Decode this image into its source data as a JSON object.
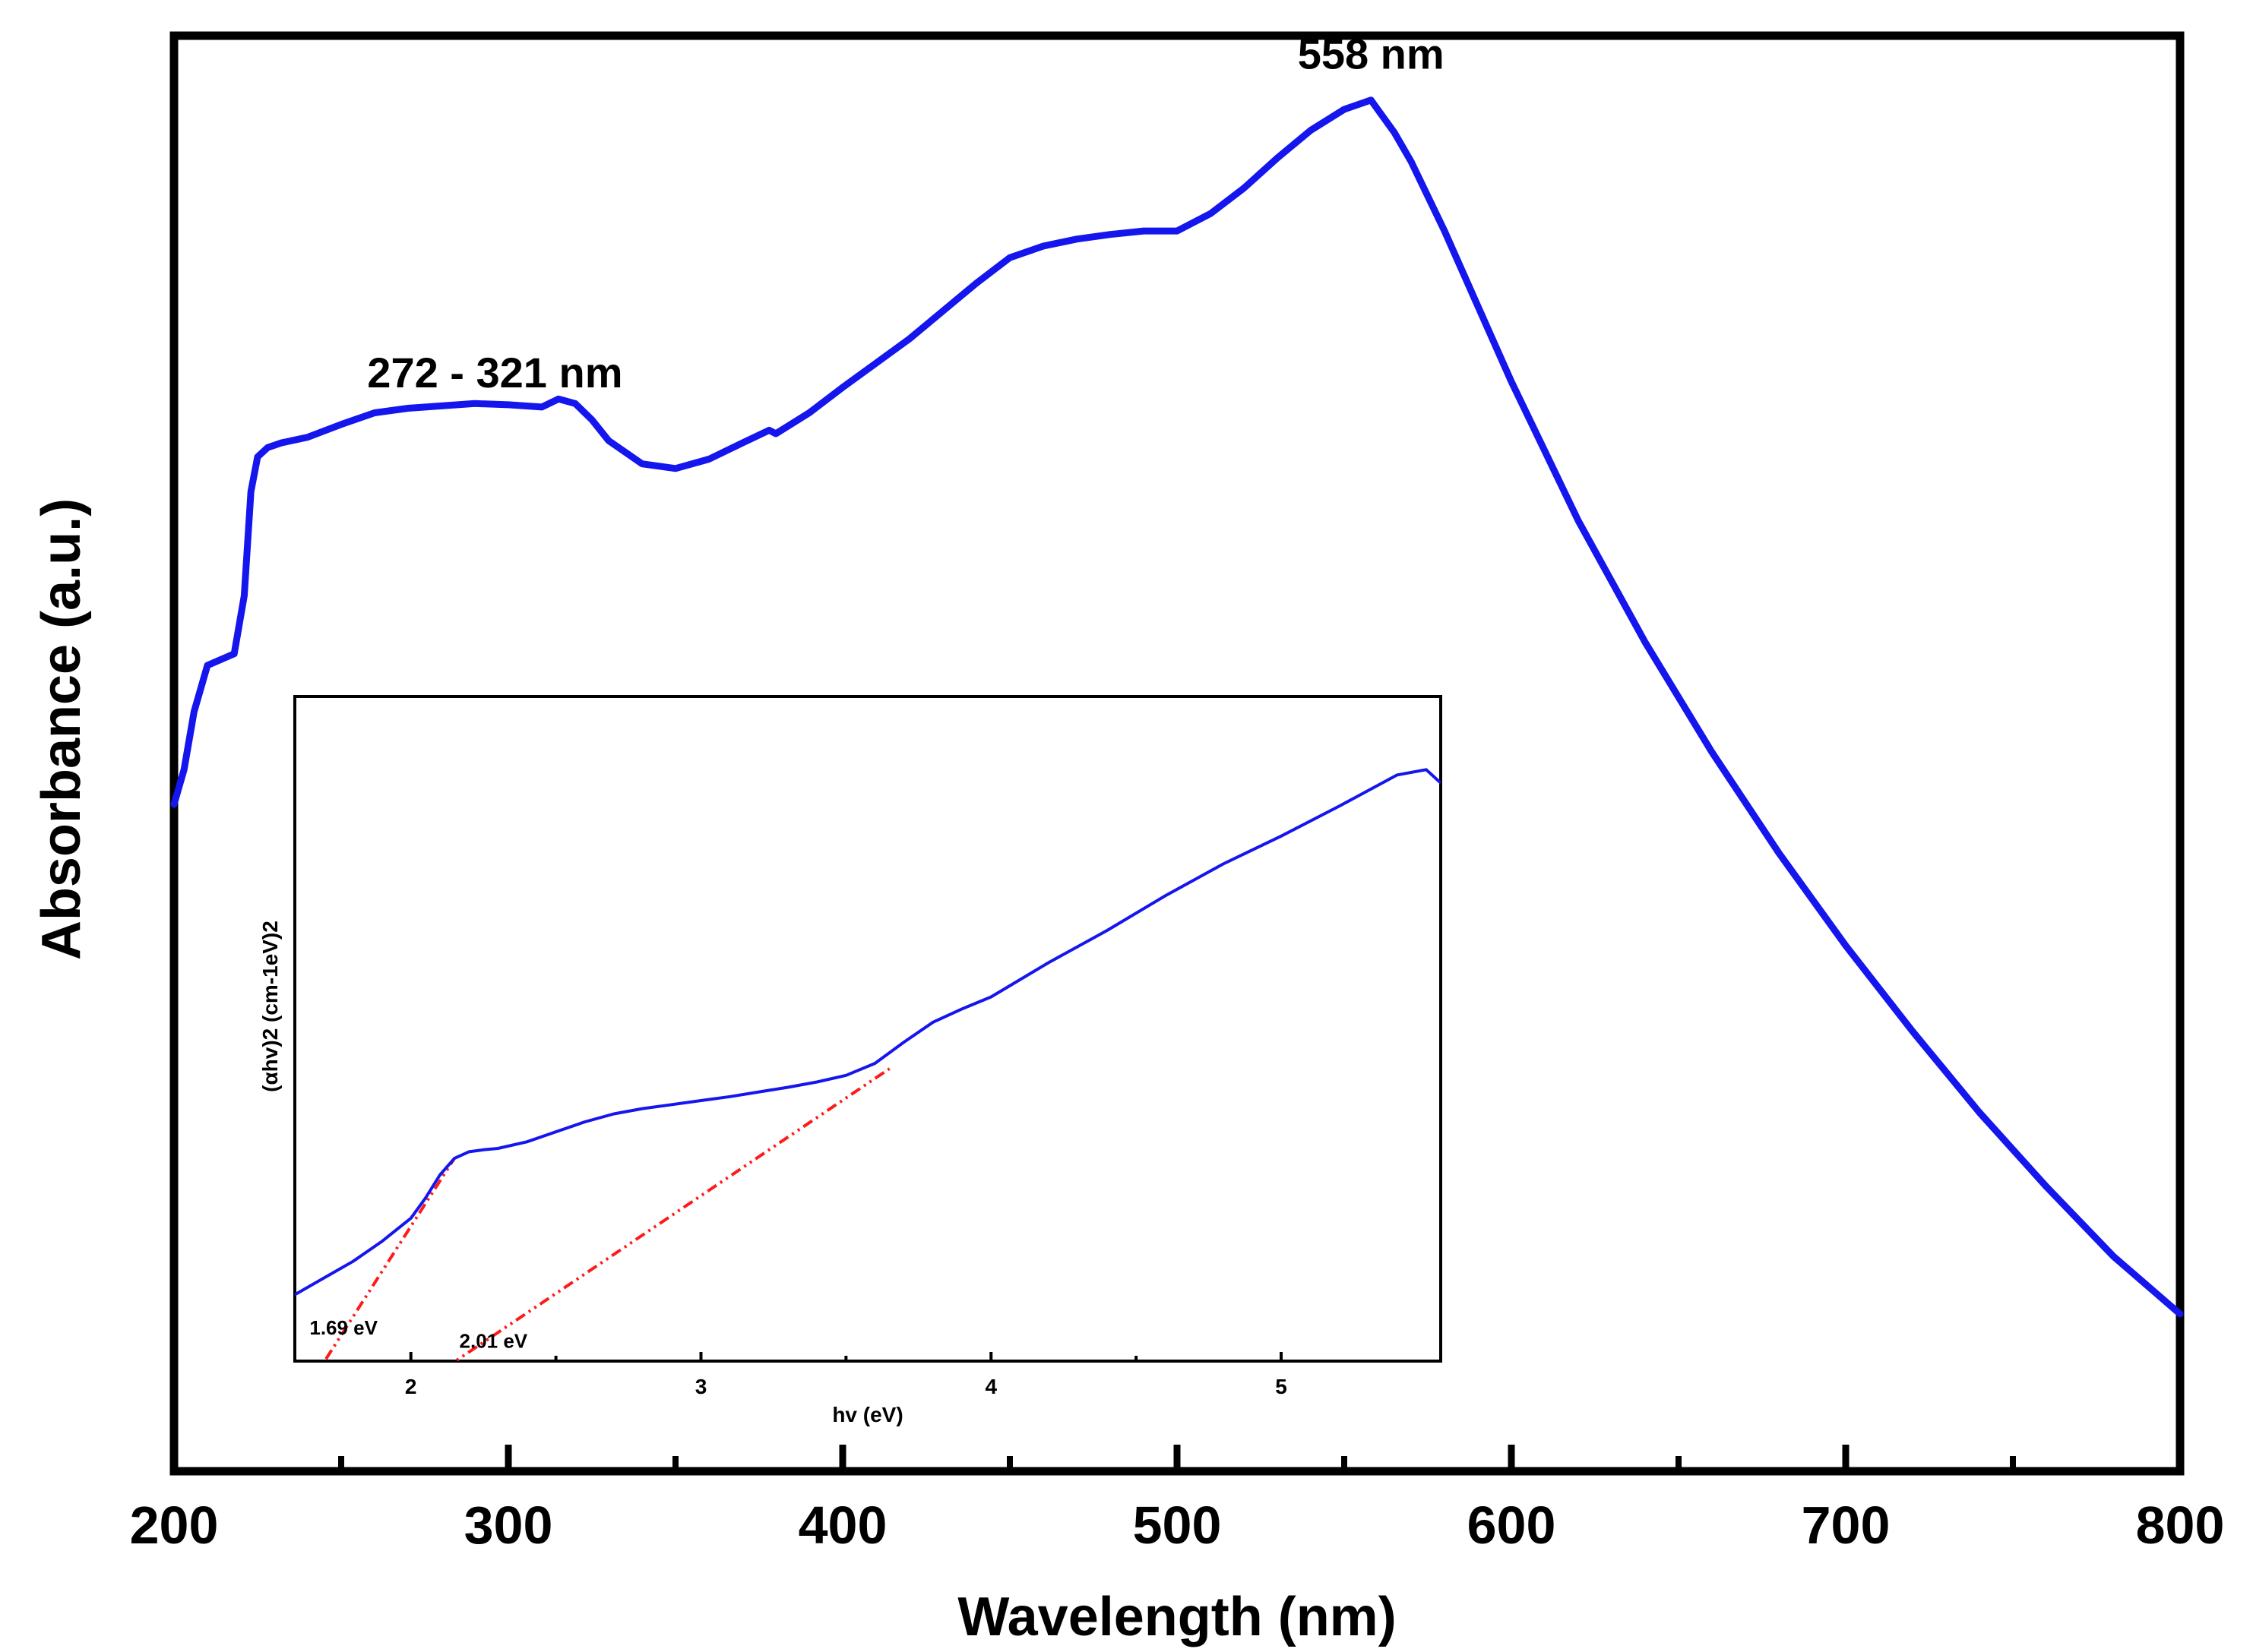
{
  "chart_data": [
    {
      "type": "line",
      "title": "",
      "xlabel": "Wavelength (nm)",
      "ylabel": "Absorbance (a.u.)",
      "xlim": [
        200,
        800
      ],
      "ylim": [
        0,
        1
      ],
      "y_tick_labels_shown": false,
      "xticks": [
        200,
        300,
        400,
        500,
        600,
        700,
        800
      ],
      "xtick_labels": [
        "200",
        "300",
        "400",
        "500",
        "600",
        "700",
        "800"
      ],
      "minor_xticks": [
        250,
        350,
        450,
        550,
        650,
        750
      ],
      "series": [
        {
          "name": "Absorbance",
          "color": "#1515ee",
          "x": [
            200,
            203,
            206,
            210,
            214,
            218,
            221,
            223,
            225,
            228,
            232,
            240,
            250,
            260,
            270,
            280,
            290,
            300,
            310,
            315,
            320,
            325,
            330,
            340,
            350,
            360,
            370,
            378,
            380,
            390,
            400,
            420,
            440,
            450,
            460,
            470,
            480,
            490,
            500,
            510,
            520,
            530,
            540,
            550,
            555,
            558,
            560,
            565,
            570,
            580,
            590,
            600,
            620,
            640,
            660,
            680,
            700,
            720,
            740,
            760,
            780,
            800
          ],
          "values": [
            0.44,
            0.47,
            0.52,
            0.56,
            0.565,
            0.57,
            0.62,
            0.71,
            0.74,
            0.748,
            0.752,
            0.757,
            0.768,
            0.778,
            0.782,
            0.784,
            0.786,
            0.785,
            0.783,
            0.79,
            0.786,
            0.772,
            0.754,
            0.734,
            0.73,
            0.738,
            0.752,
            0.763,
            0.76,
            0.778,
            0.8,
            0.842,
            0.89,
            0.912,
            0.922,
            0.928,
            0.932,
            0.935,
            0.935,
            0.95,
            0.972,
            0.998,
            1.022,
            1.04,
            1.045,
            1.048,
            1.04,
            1.02,
            0.995,
            0.935,
            0.87,
            0.805,
            0.685,
            0.58,
            0.485,
            0.398,
            0.318,
            0.244,
            0.174,
            0.11,
            0.05,
            0.0
          ]
        }
      ],
      "annotations": [
        {
          "text": "272 - 321 nm",
          "x": 296,
          "y": 0.8
        },
        {
          "text": "558 nm",
          "x": 558,
          "y": 1.075
        }
      ]
    },
    {
      "type": "line",
      "title": "",
      "xlabel": "hv (eV)",
      "ylabel": "(αhv)2 (cm-1eV)2",
      "xlim": [
        1.6,
        5.55
      ],
      "ylim": [
        0,
        1
      ],
      "xticks": [
        2,
        3,
        4,
        5
      ],
      "xtick_labels": [
        "2",
        "3",
        "4",
        "5"
      ],
      "minor_xticks": [
        2.5,
        3.5,
        4.5
      ],
      "series": [
        {
          "name": "Tauc plot",
          "color": "#1515ee",
          "x": [
            1.6,
            1.7,
            1.8,
            1.9,
            2.0,
            2.05,
            2.1,
            2.15,
            2.2,
            2.25,
            2.3,
            2.4,
            2.5,
            2.6,
            2.7,
            2.8,
            2.9,
            3.0,
            3.1,
            3.2,
            3.3,
            3.4,
            3.5,
            3.6,
            3.7,
            3.8,
            3.9,
            4.0,
            4.2,
            4.4,
            4.6,
            4.8,
            5.0,
            5.2,
            5.4,
            5.5,
            5.55
          ],
          "values": [
            0.1,
            0.125,
            0.15,
            0.18,
            0.215,
            0.245,
            0.28,
            0.305,
            0.315,
            0.318,
            0.32,
            0.33,
            0.345,
            0.36,
            0.372,
            0.38,
            0.386,
            0.392,
            0.398,
            0.405,
            0.412,
            0.42,
            0.43,
            0.448,
            0.48,
            0.51,
            0.53,
            0.548,
            0.6,
            0.648,
            0.7,
            0.748,
            0.79,
            0.835,
            0.882,
            0.89,
            0.87
          ]
        }
      ],
      "fit_lines": [
        {
          "name": "linear fit 1",
          "color": "#ff1a1a",
          "x": [
            1.6,
            2.15
          ],
          "values": [
            -0.07,
            0.305
          ]
        },
        {
          "name": "linear fit 2",
          "color": "#ff1a1a",
          "x": [
            1.95,
            3.65
          ],
          "values": [
            -0.06,
            0.44
          ]
        }
      ],
      "annotations": [
        {
          "text": "1.69 eV",
          "x": 1.69,
          "y": 0.04
        },
        {
          "text": "2.01 eV",
          "x": 2.01,
          "y": 0.02
        }
      ],
      "placement": "lower-left inset"
    }
  ]
}
